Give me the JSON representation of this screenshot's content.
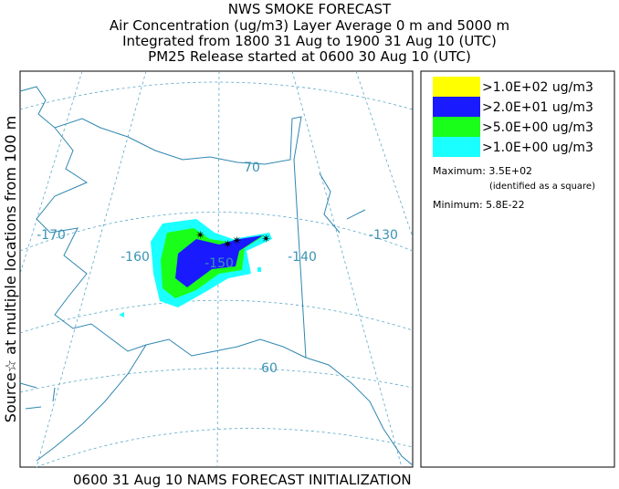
{
  "header": {
    "title": "NWS SMOKE FORECAST",
    "lines": [
      "Air Concentration (ug/m3) Layer Average    0 m and  5000 m",
      "Integrated from 1800 31 Aug to 1900 31 Aug 10 (UTC)",
      "PM25 Release started at 0600 30 Aug 10 (UTC)"
    ]
  },
  "side_label": "Source☆ at multiple locations   from   100 m",
  "map": {
    "graticule_labels": [
      "-170",
      "-160",
      "-150",
      "-140",
      "-130",
      "70",
      "60"
    ]
  },
  "legend": {
    "items": [
      {
        "label": ">1.0E+02 ug/m3",
        "color": "#ffff00"
      },
      {
        "label": ">2.0E+01 ug/m3",
        "color": "#1a1aff"
      },
      {
        "label": ">5.0E+00 ug/m3",
        "color": "#1aff1a"
      },
      {
        "label": ">1.0E+00 ug/m3",
        "color": "#1affff"
      }
    ],
    "maximum": "Maximum: 3.5E+02",
    "maximum_note": "(identified as a square)",
    "minimum": "Minimum: 5.8E-22"
  },
  "footer": "0600 31 Aug 10 NAMS FORECAST INITIALIZATION"
}
